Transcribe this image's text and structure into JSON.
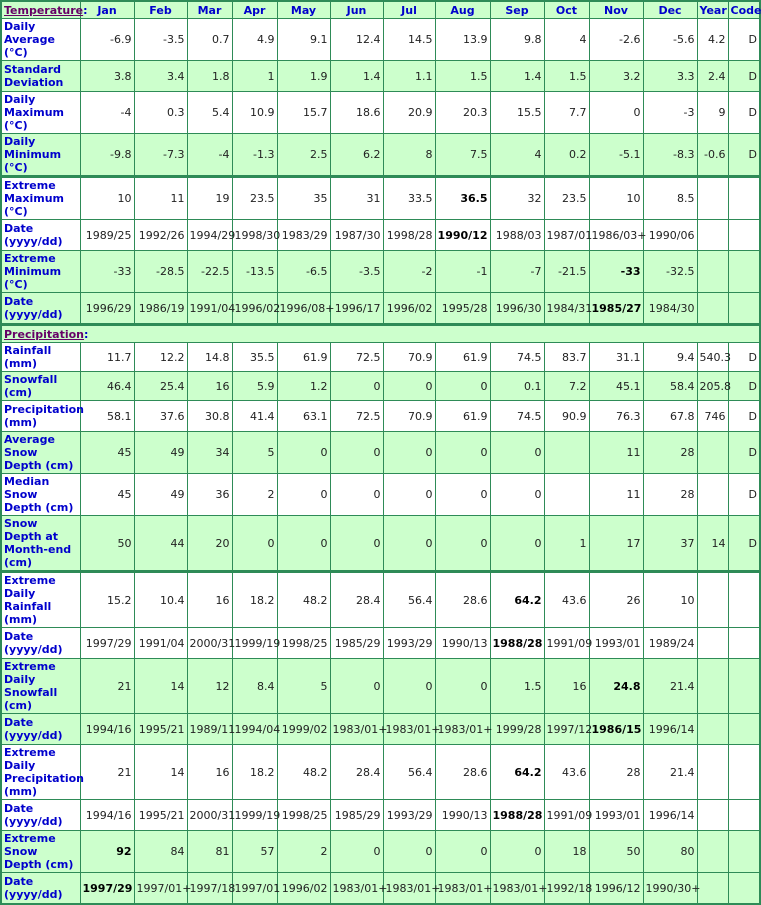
{
  "columns": [
    "Jan",
    "Feb",
    "Mar",
    "Apr",
    "May",
    "Jun",
    "Jul",
    "Aug",
    "Sep",
    "Oct",
    "Nov",
    "Dec",
    "Year",
    "Code"
  ],
  "colors": {
    "row_alt": "#ccffcc",
    "label": "#0000cc",
    "border": "#2e8b57",
    "section": "#660066"
  },
  "sections": [
    {
      "title": "Temperature",
      "rows": [
        {
          "label": "Daily Average (°C)",
          "values": [
            "-6.9",
            "-3.5",
            "0.7",
            "4.9",
            "9.1",
            "12.4",
            "14.5",
            "13.9",
            "9.8",
            "4",
            "-2.6",
            "-5.6",
            "4.2",
            "D"
          ],
          "bold": []
        },
        {
          "label": "Standard Deviation",
          "values": [
            "3.8",
            "3.4",
            "1.8",
            "1",
            "1.9",
            "1.4",
            "1.1",
            "1.5",
            "1.4",
            "1.5",
            "3.2",
            "3.3",
            "2.4",
            "D"
          ],
          "bold": []
        },
        {
          "label": "Daily Maximum (°C)",
          "values": [
            "-4",
            "0.3",
            "5.4",
            "10.9",
            "15.7",
            "18.6",
            "20.9",
            "20.3",
            "15.5",
            "7.7",
            "0",
            "-3",
            "9",
            "D"
          ],
          "bold": []
        },
        {
          "label": "Daily Minimum (°C)",
          "values": [
            "-9.8",
            "-7.3",
            "-4",
            "-1.3",
            "2.5",
            "6.2",
            "8",
            "7.5",
            "4",
            "0.2",
            "-5.1",
            "-8.3",
            "-0.6",
            "D"
          ],
          "bold": []
        },
        {
          "label": "Extreme Maximum (°C)",
          "values": [
            "10",
            "11",
            "19",
            "23.5",
            "35",
            "31",
            "33.5",
            "36.5",
            "32",
            "23.5",
            "10",
            "8.5",
            "",
            ""
          ],
          "bold": [
            7
          ],
          "sep": true
        },
        {
          "label": "Date (yyyy/dd)",
          "values": [
            "1989/25",
            "1992/26",
            "1994/29",
            "1998/30",
            "1983/29",
            "1987/30",
            "1998/28",
            "1990/12",
            "1988/03",
            "1987/01",
            "1986/03+",
            "1990/06",
            "",
            ""
          ],
          "bold": [
            7
          ]
        },
        {
          "label": "Extreme Minimum (°C)",
          "values": [
            "-33",
            "-28.5",
            "-22.5",
            "-13.5",
            "-6.5",
            "-3.5",
            "-2",
            "-1",
            "-7",
            "-21.5",
            "-33",
            "-32.5",
            "",
            ""
          ],
          "bold": [
            10
          ]
        },
        {
          "label": "Date (yyyy/dd)",
          "values": [
            "1996/29",
            "1986/19",
            "1991/04",
            "1996/02",
            "1996/08+",
            "1996/17",
            "1996/02",
            "1995/28",
            "1996/30",
            "1984/31",
            "1985/27",
            "1984/30",
            "",
            ""
          ],
          "bold": [
            10
          ]
        }
      ]
    },
    {
      "title": "Precipitation",
      "rows": [
        {
          "label": "Rainfall (mm)",
          "values": [
            "11.7",
            "12.2",
            "14.8",
            "35.5",
            "61.9",
            "72.5",
            "70.9",
            "61.9",
            "74.5",
            "83.7",
            "31.1",
            "9.4",
            "540.3",
            "D"
          ],
          "bold": []
        },
        {
          "label": "Snowfall (cm)",
          "values": [
            "46.4",
            "25.4",
            "16",
            "5.9",
            "1.2",
            "0",
            "0",
            "0",
            "0.1",
            "7.2",
            "45.1",
            "58.4",
            "205.8",
            "D"
          ],
          "bold": []
        },
        {
          "label": "Precipitation (mm)",
          "values": [
            "58.1",
            "37.6",
            "30.8",
            "41.4",
            "63.1",
            "72.5",
            "70.9",
            "61.9",
            "74.5",
            "90.9",
            "76.3",
            "67.8",
            "746",
            "D"
          ],
          "bold": []
        },
        {
          "label": "Average Snow Depth (cm)",
          "values": [
            "45",
            "49",
            "34",
            "5",
            "0",
            "0",
            "0",
            "0",
            "0",
            "",
            "11",
            "28",
            "",
            "D"
          ],
          "bold": []
        },
        {
          "label": "Median Snow Depth (cm)",
          "values": [
            "45",
            "49",
            "36",
            "2",
            "0",
            "0",
            "0",
            "0",
            "0",
            "",
            "11",
            "28",
            "",
            "D"
          ],
          "bold": []
        },
        {
          "label": "Snow Depth at Month-end (cm)",
          "values": [
            "50",
            "44",
            "20",
            "0",
            "0",
            "0",
            "0",
            "0",
            "0",
            "1",
            "17",
            "37",
            "14",
            "D"
          ],
          "bold": []
        },
        {
          "label": "Extreme Daily Rainfall (mm)",
          "values": [
            "15.2",
            "10.4",
            "16",
            "18.2",
            "48.2",
            "28.4",
            "56.4",
            "28.6",
            "64.2",
            "43.6",
            "26",
            "10",
            "",
            ""
          ],
          "bold": [
            8
          ],
          "sep": true
        },
        {
          "label": "Date (yyyy/dd)",
          "values": [
            "1997/29",
            "1991/04",
            "2000/31",
            "1999/19",
            "1998/25",
            "1985/29",
            "1993/29",
            "1990/13",
            "1988/28",
            "1991/09",
            "1993/01",
            "1989/24",
            "",
            ""
          ],
          "bold": [
            8
          ]
        },
        {
          "label": "Extreme Daily Snowfall (cm)",
          "values": [
            "21",
            "14",
            "12",
            "8.4",
            "5",
            "0",
            "0",
            "0",
            "1.5",
            "16",
            "24.8",
            "21.4",
            "",
            ""
          ],
          "bold": [
            10
          ]
        },
        {
          "label": "Date (yyyy/dd)",
          "values": [
            "1994/16",
            "1995/21",
            "1989/11",
            "1994/04",
            "1999/02",
            "1983/01+",
            "1983/01+",
            "1983/01+",
            "1999/28",
            "1997/12",
            "1986/15",
            "1996/14",
            "",
            ""
          ],
          "bold": [
            10
          ]
        },
        {
          "label": "Extreme Daily Precipitation (mm)",
          "values": [
            "21",
            "14",
            "16",
            "18.2",
            "48.2",
            "28.4",
            "56.4",
            "28.6",
            "64.2",
            "43.6",
            "28",
            "21.4",
            "",
            ""
          ],
          "bold": [
            8
          ]
        },
        {
          "label": "Date (yyyy/dd)",
          "values": [
            "1994/16",
            "1995/21",
            "2000/31",
            "1999/19",
            "1998/25",
            "1985/29",
            "1993/29",
            "1990/13",
            "1988/28",
            "1991/09",
            "1993/01",
            "1996/14",
            "",
            ""
          ],
          "bold": [
            8
          ]
        },
        {
          "label": "Extreme Snow Depth (cm)",
          "values": [
            "92",
            "84",
            "81",
            "57",
            "2",
            "0",
            "0",
            "0",
            "0",
            "18",
            "50",
            "80",
            "",
            ""
          ],
          "bold": [
            0
          ]
        },
        {
          "label": "Date (yyyy/dd)",
          "values": [
            "1997/29",
            "1997/01+",
            "1997/18",
            "1997/01",
            "1996/02",
            "1983/01+",
            "1983/01+",
            "1983/01+",
            "1983/01+",
            "1992/18",
            "1996/12",
            "1990/30+",
            "",
            ""
          ],
          "bold": [
            0
          ]
        }
      ]
    }
  ]
}
